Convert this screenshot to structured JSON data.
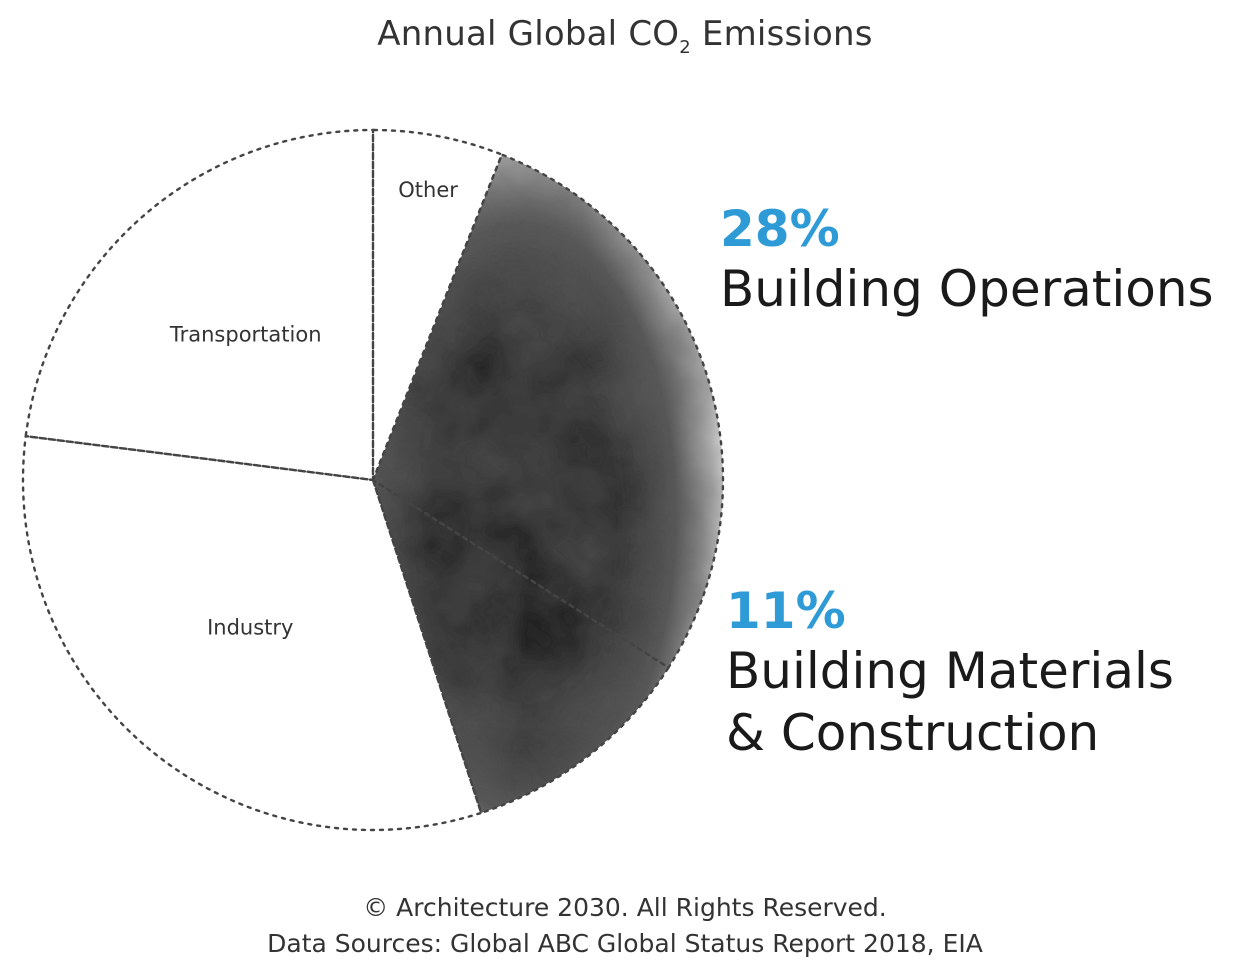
{
  "chart_data": {
    "type": "pie",
    "title": "Annual Global CO",
    "title_subscript": "2",
    "title_suffix": " Emissions",
    "slices": [
      {
        "name": "Other",
        "value": 6,
        "highlighted": false
      },
      {
        "name": "Building Operations",
        "label": "28%",
        "value": 28,
        "highlighted": true
      },
      {
        "name": "Building Materials & Construction",
        "label": "11%",
        "value": 11,
        "highlighted": true
      },
      {
        "name": "Industry",
        "value": 32,
        "highlighted": false
      },
      {
        "name": "Transportation",
        "value": 23,
        "highlighted": false
      }
    ],
    "start": "top",
    "direction": "clockwise",
    "outline": "dotted",
    "highlight_fill": "smoke texture",
    "colors": {
      "accent": "#2e9ad6",
      "outline": "#444444",
      "smoke_dark": "#2a2a2a",
      "text": "#222222"
    }
  },
  "callouts": {
    "ops": {
      "pct": "28%",
      "label": "Building Operations"
    },
    "materials": {
      "pct": "11%",
      "label": "Building Materials & Construction"
    }
  },
  "footer": {
    "copyright": "© Architecture 2030. All Rights Reserved.",
    "sources": "Data Sources: Global ABC Global Status Report 2018, EIA"
  }
}
